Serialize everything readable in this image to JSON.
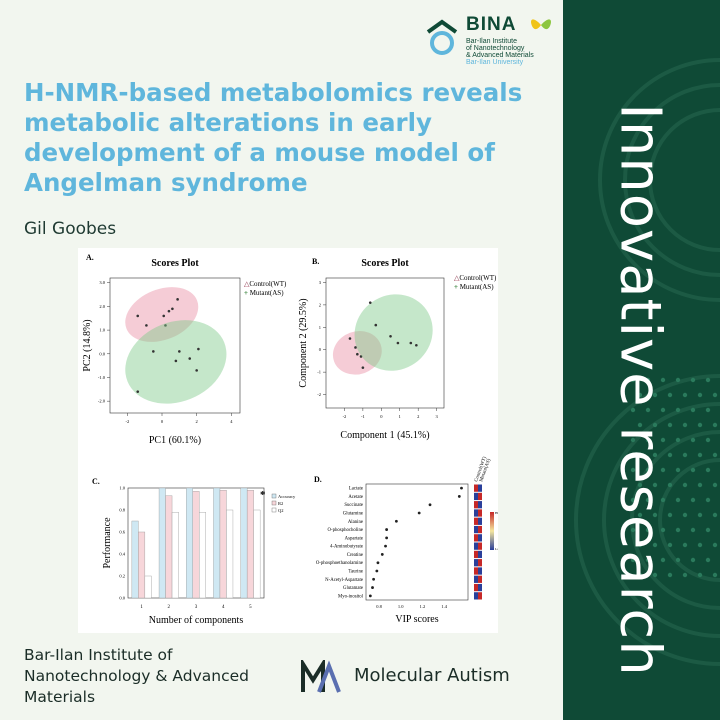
{
  "logo": {
    "name": "BINA",
    "line1": "Bar-Ilan Institute",
    "line2": "of Nanotechnology",
    "line3": "& Advanced Materials",
    "line4": "Bar-Ilan University"
  },
  "title": "H-NMR-based metabolomics reveals metabolic alterations in early development of a mouse model of Angelman syndrome",
  "author": "Gil Goobes",
  "vertical_text": "Innovative research",
  "institute": "Bar-Ilan Institute  of Nanotechnology & Advanced Materials",
  "journal": {
    "name": "Molecular Autism"
  },
  "colors": {
    "panel_dark": "#0f4a36",
    "title_blue": "#5fb6dc",
    "wt": "#e88fa5",
    "as": "#7fc98a"
  },
  "chart_data": [
    {
      "panel": "A.",
      "type": "scatter",
      "title": "Scores Plot",
      "xlabel": "PC1 (60.1%)",
      "ylabel": "PC2 (14.8%)",
      "xlim": [
        -3,
        4.5
      ],
      "ylim": [
        -2.5,
        3.2
      ],
      "x_ticks": [
        "-2",
        "0",
        "2",
        "4"
      ],
      "y_ticks": [
        "3.0",
        "2.0",
        "1.0",
        "0.0",
        "-1.0",
        "-2.0"
      ],
      "legend": [
        "Control(WT)",
        "Mutant(AS)"
      ],
      "legend_position": "right",
      "series": [
        {
          "name": "Control(WT)",
          "points": [
            [
              0.9,
              2.3
            ],
            [
              0.6,
              1.9
            ],
            [
              0.1,
              1.6
            ],
            [
              -0.9,
              1.2
            ],
            [
              -1.4,
              1.6
            ],
            [
              0.2,
              1.2
            ],
            [
              0.4,
              1.8
            ]
          ]
        },
        {
          "name": "Mutant(AS)",
          "points": [
            [
              -0.5,
              0.1
            ],
            [
              1.0,
              0.1
            ],
            [
              1.6,
              -0.2
            ],
            [
              2.0,
              -0.7
            ],
            [
              -1.4,
              -1.6
            ],
            [
              0.8,
              -0.3
            ],
            [
              2.1,
              0.2
            ]
          ]
        }
      ]
    },
    {
      "panel": "B.",
      "type": "scatter",
      "title": "Scores Plot",
      "xlabel": "Component 1 (45.1%)",
      "ylabel": "Component 2 (29.5%)",
      "xlim": [
        -3,
        3.4
      ],
      "ylim": [
        -2.6,
        3.2
      ],
      "x_ticks": [
        "-2",
        "-1",
        "0",
        "1",
        "2",
        "3"
      ],
      "y_ticks": [
        "3",
        "2",
        "1",
        "0",
        "-1",
        "-2"
      ],
      "legend": [
        "Control(WT)",
        "Mutant(AS)"
      ],
      "legend_position": "right",
      "series": [
        {
          "name": "Control(WT)",
          "points": [
            [
              -1.7,
              0.5
            ],
            [
              -1.4,
              0.1
            ],
            [
              -1.1,
              -0.3
            ],
            [
              -1.0,
              -0.8
            ],
            [
              -1.3,
              -0.2
            ]
          ]
        },
        {
          "name": "Mutant(AS)",
          "points": [
            [
              -0.6,
              2.1
            ],
            [
              -0.3,
              1.1
            ],
            [
              0.5,
              0.6
            ],
            [
              0.9,
              0.3
            ],
            [
              1.6,
              0.3
            ],
            [
              1.9,
              0.2
            ]
          ]
        }
      ]
    },
    {
      "panel": "C.",
      "type": "bar",
      "ylabel": "Performance",
      "xlabel": "Number of components",
      "categories": [
        "1",
        "2",
        "3",
        "4",
        "5"
      ],
      "ylim": [
        0,
        1.0
      ],
      "y_ticks": [
        "0.0",
        "0.2",
        "0.4",
        "0.6",
        "0.8",
        "1.0"
      ],
      "legend": [
        "Accuracy",
        "R2",
        "Q2"
      ],
      "legend_position": "right",
      "annotation": "*",
      "series": [
        {
          "name": "Accuracy",
          "values": [
            0.7,
            1.0,
            1.0,
            1.0,
            1.0
          ]
        },
        {
          "name": "R2",
          "values": [
            0.6,
            0.93,
            0.97,
            0.98,
            0.98
          ]
        },
        {
          "name": "Q2",
          "values": [
            0.2,
            0.78,
            0.78,
            0.8,
            0.8
          ]
        }
      ]
    },
    {
      "panel": "D.",
      "type": "dot",
      "xlabel": "VIP scores",
      "x_ticks": [
        "0.8",
        "1.0",
        "1.2",
        "1.4"
      ],
      "xlim": [
        0.68,
        1.62
      ],
      "categories": [
        "Lactate",
        "Acetate",
        "Succinate",
        "Glutamine",
        "Alanine",
        "O-phosphocholine",
        "Aspartate",
        "4-Aminobutyrate",
        "Creatine",
        "O-phosphoethanolamine",
        "Taurine",
        "N-Acetyl-Aspartate",
        "Glutamate",
        "Myo-inositol"
      ],
      "values": [
        1.56,
        1.54,
        1.27,
        1.17,
        0.96,
        0.87,
        0.87,
        0.86,
        0.83,
        0.79,
        0.78,
        0.75,
        0.74,
        0.72
      ],
      "heat_columns": [
        "Control(WT)",
        "Mutant(AS)"
      ],
      "heat_legend": [
        "High",
        "Low"
      ]
    }
  ]
}
